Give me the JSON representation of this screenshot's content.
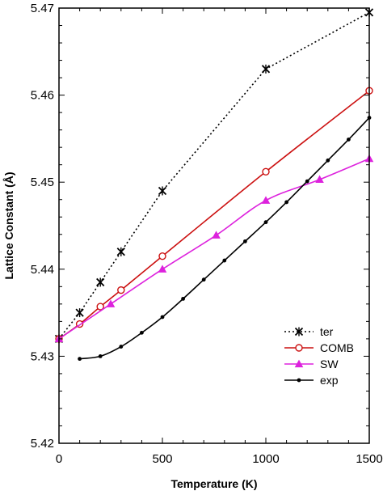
{
  "chart_data": {
    "type": "line",
    "xlabel": "Temperature  (K)",
    "ylabel": "Lattice Constant (Å)",
    "xlim": [
      0,
      1500
    ],
    "ylim": [
      5.42,
      5.47
    ],
    "x_ticks": [
      0,
      500,
      1000,
      1500
    ],
    "y_ticks": [
      5.42,
      5.43,
      5.44,
      5.45,
      5.46,
      5.47
    ],
    "x_tick_labels": [
      "0",
      "500",
      "1000",
      "1500"
    ],
    "y_tick_labels": [
      "5.42",
      "5.43",
      "5.44",
      "5.45",
      "5.46",
      "5.47"
    ],
    "grid": false,
    "legend_position": "lower-right",
    "series": [
      {
        "name": "ter",
        "color": "#000000",
        "line_style": "dotted",
        "marker": "star",
        "smooth": false,
        "x": [
          0,
          100,
          200,
          300,
          500,
          1000,
          1500
        ],
        "y": [
          5.432,
          5.435,
          5.4385,
          5.442,
          5.449,
          5.463,
          5.4695
        ]
      },
      {
        "name": "COMB",
        "color": "#cc1111",
        "line_style": "solid",
        "marker": "circle",
        "smooth": true,
        "x": [
          0,
          100,
          200,
          300,
          500,
          1000,
          1500
        ],
        "y": [
          5.432,
          5.4337,
          5.4357,
          5.4376,
          5.4415,
          5.4512,
          5.4605
        ]
      },
      {
        "name": "SW",
        "color": "#dd22dd",
        "line_style": "solid",
        "marker": "triangle",
        "smooth": true,
        "x": [
          0,
          250,
          500,
          760,
          1000,
          1260,
          1500
        ],
        "y": [
          5.432,
          5.436,
          5.44,
          5.4439,
          5.4479,
          5.4503,
          5.4527
        ]
      },
      {
        "name": "exp",
        "color": "#000000",
        "line_style": "solid",
        "marker": "dot",
        "smooth": true,
        "x": [
          100,
          200,
          300,
          400,
          500,
          600,
          700,
          800,
          900,
          1000,
          1100,
          1200,
          1300,
          1400,
          1500
        ],
        "y": [
          5.4297,
          5.43,
          5.4311,
          5.4327,
          5.4345,
          5.4366,
          5.4388,
          5.441,
          5.4432,
          5.4454,
          5.4477,
          5.4501,
          5.4525,
          5.4549,
          5.4574
        ]
      }
    ]
  }
}
